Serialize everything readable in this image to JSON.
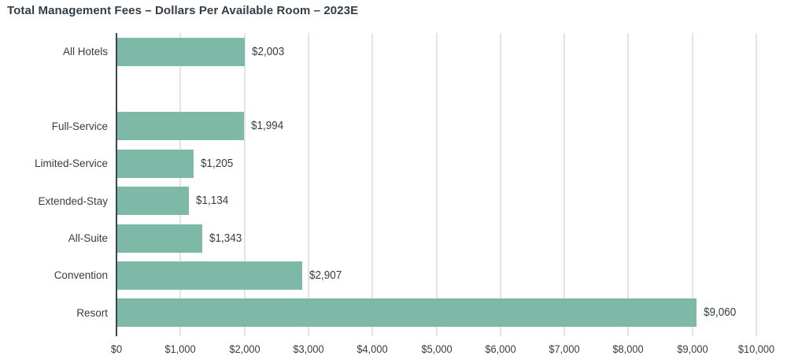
{
  "chart_data": {
    "type": "bar",
    "orientation": "horizontal",
    "title": "Total Management Fees – Dollars Per Available Room – 2023E",
    "series": [
      {
        "category": "All Hotels",
        "value": 2003,
        "value_label": "$2,003",
        "spacer": false
      },
      {
        "category": "",
        "value": null,
        "value_label": "",
        "spacer": true
      },
      {
        "category": "Full-Service",
        "value": 1994,
        "value_label": "$1,994",
        "spacer": false
      },
      {
        "category": "Limited-Service",
        "value": 1205,
        "value_label": "$1,205",
        "spacer": false
      },
      {
        "category": "Extended-Stay",
        "value": 1134,
        "value_label": "$1,134",
        "spacer": false
      },
      {
        "category": "All-Suite",
        "value": 1343,
        "value_label": "$1,343",
        "spacer": false
      },
      {
        "category": "Convention",
        "value": 2907,
        "value_label": "$2,907",
        "spacer": false
      },
      {
        "category": "Resort",
        "value": 9060,
        "value_label": "$9,060",
        "spacer": false
      }
    ],
    "x_axis": {
      "min": 0,
      "max": 10000,
      "tick_step": 1000,
      "tick_labels": [
        "$0",
        "$1,000",
        "$2,000",
        "$3,000",
        "$4,000",
        "$5,000",
        "$6,000",
        "$7,000",
        "$8,000",
        "$9,000",
        "$10,000"
      ]
    },
    "ylabel": "",
    "xlabel": "",
    "legend": "none",
    "grid": "vertical",
    "colors": {
      "bar": "#7eb9a8",
      "text": "#333e48",
      "axis_line": "#3a444d",
      "gridline": "#e4e4e6",
      "background": "#ffffff"
    }
  }
}
